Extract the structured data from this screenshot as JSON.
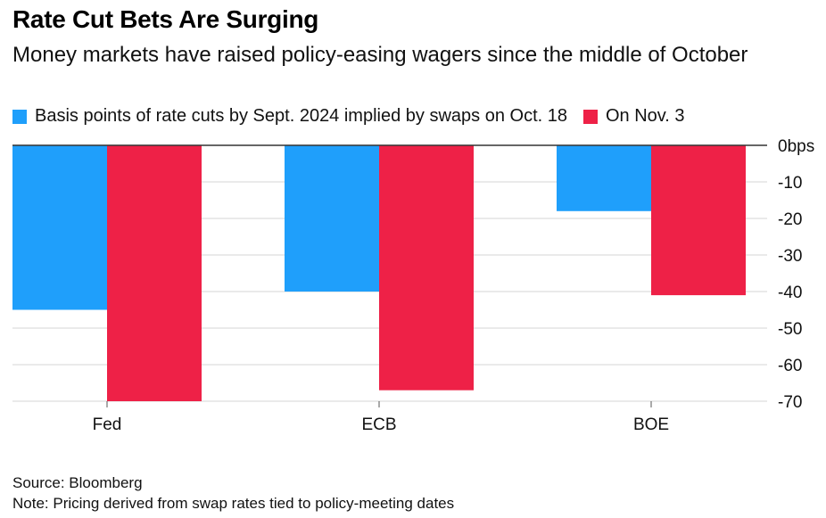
{
  "title": "Rate Cut Bets Are Surging",
  "subtitle": "Money markets have raised policy-easing wagers since the middle of October",
  "source": "Source: Bloomberg",
  "note": "Note: Pricing derived from swap rates tied to policy-meeting dates",
  "colors": {
    "series1": "#1f9ffb",
    "series2": "#ee2147",
    "grid": "#d4d4d4",
    "zero": "#333333"
  },
  "chart_data": {
    "type": "bar",
    "categories": [
      "Fed",
      "ECB",
      "BOE"
    ],
    "series": [
      {
        "name": "Basis points of rate cuts by Sept. 2024 implied by swaps on Oct. 18",
        "values": [
          -45,
          -40,
          -18
        ]
      },
      {
        "name": "On Nov. 3",
        "values": [
          -70,
          -67,
          -41
        ]
      }
    ],
    "y_ticks": [
      "0bps",
      "-10",
      "-20",
      "-30",
      "-40",
      "-50",
      "-60",
      "-70"
    ],
    "ylim": [
      -70,
      0
    ],
    "grid": true,
    "legend_position": "top-left"
  }
}
